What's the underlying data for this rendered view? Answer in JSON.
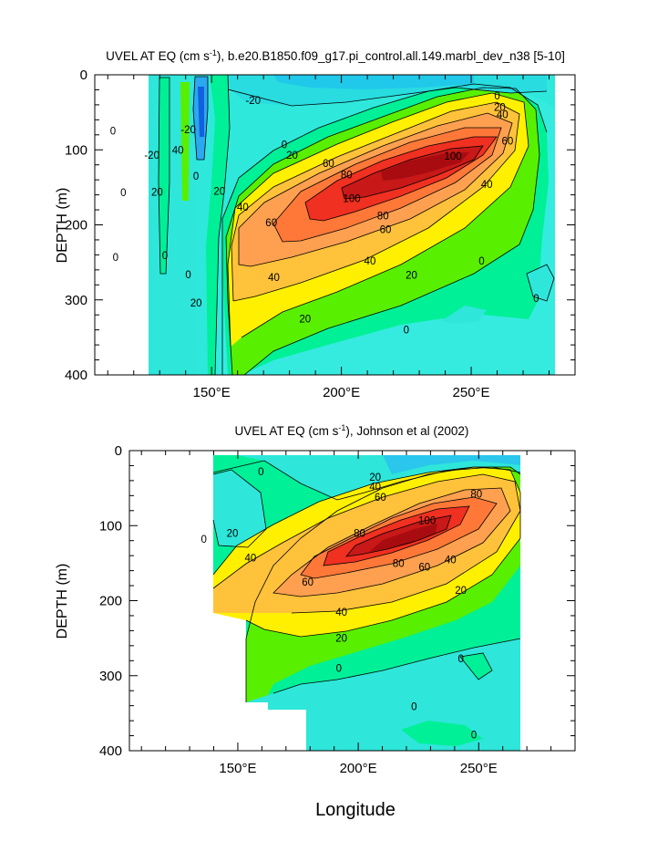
{
  "chart_data": [
    {
      "type": "contour",
      "title_prefix": "UVEL AT EQ (cm s",
      "title_suffix": "), b.e20.B1850.f09_g17.pi_control.all.149.marbl_dev_n38 [5-10]",
      "title_sup": "-1",
      "ylabel": "DEPTH (m)",
      "xlabel": "",
      "xlim": [
        105,
        290
      ],
      "ylim": [
        400,
        0
      ],
      "xticks": [
        {
          "v": 150,
          "label": "150°E"
        },
        {
          "v": 200,
          "label": "200°E"
        },
        {
          "v": 250,
          "label": "250°E"
        }
      ],
      "yticks": [
        {
          "v": 0,
          "label": "0"
        },
        {
          "v": 100,
          "label": "100"
        },
        {
          "v": 200,
          "label": "200"
        },
        {
          "v": 300,
          "label": "300"
        },
        {
          "v": 400,
          "label": "400"
        }
      ],
      "contour_levels_cm_s": [
        -40,
        -20,
        0,
        20,
        40,
        60,
        80,
        100
      ],
      "contour_labels": [
        {
          "x": 204,
          "y": 165,
          "t": "100"
        },
        {
          "x": 243,
          "y": 108,
          "t": "100"
        },
        {
          "x": 202,
          "y": 133,
          "t": "80"
        },
        {
          "x": 216,
          "y": 188,
          "t": "80"
        },
        {
          "x": 195,
          "y": 118,
          "t": "60"
        },
        {
          "x": 217,
          "y": 206,
          "t": "60"
        },
        {
          "x": 264,
          "y": 88,
          "t": "60"
        },
        {
          "x": 173,
          "y": 197,
          "t": "60"
        },
        {
          "x": 181,
          "y": 107,
          "t": "20"
        },
        {
          "x": 261,
          "y": 43,
          "t": "20"
        },
        {
          "x": 262,
          "y": 53,
          "t": "40"
        },
        {
          "x": 256,
          "y": 146,
          "t": "40"
        },
        {
          "x": 162,
          "y": 176,
          "t": "40"
        },
        {
          "x": 211,
          "y": 248,
          "t": "40"
        },
        {
          "x": 174,
          "y": 270,
          "t": "40"
        },
        {
          "x": 227,
          "y": 267,
          "t": "20"
        },
        {
          "x": 186,
          "y": 325,
          "t": "20"
        },
        {
          "x": 153,
          "y": 155,
          "t": "20"
        },
        {
          "x": 178,
          "y": 93,
          "t": "0"
        },
        {
          "x": 260,
          "y": 28,
          "t": "0"
        },
        {
          "x": 225,
          "y": 340,
          "t": "0"
        },
        {
          "x": 166,
          "y": 34,
          "t": "-20"
        },
        {
          "x": 141,
          "y": 73,
          "t": "-20"
        },
        {
          "x": 127,
          "y": 107,
          "t": "-20"
        },
        {
          "x": 137,
          "y": 100,
          "t": "40"
        },
        {
          "x": 112,
          "y": 75,
          "t": "0"
        },
        {
          "x": 116,
          "y": 157,
          "t": "0"
        },
        {
          "x": 132,
          "y": 241,
          "t": "0"
        },
        {
          "x": 113,
          "y": 243,
          "t": "0"
        },
        {
          "x": 129,
          "y": 156,
          "t": "20"
        },
        {
          "x": 141,
          "y": 266,
          "t": "0"
        },
        {
          "x": 144,
          "y": 304,
          "t": "20"
        },
        {
          "x": 275,
          "y": 298,
          "t": "0"
        },
        {
          "x": 254,
          "y": 248,
          "t": "0"
        },
        {
          "x": 144,
          "y": 135,
          "t": "0"
        }
      ]
    },
    {
      "type": "contour",
      "title_prefix": "UVEL AT EQ (cm s",
      "title_suffix": "), Johnson et al (2002)",
      "title_sup": "-1",
      "ylabel": "DEPTH (m)",
      "xlabel": "Longitude",
      "xlim": [
        105,
        290
      ],
      "ylim": [
        400,
        0
      ],
      "xticks": [
        {
          "v": 150,
          "label": "150°E"
        },
        {
          "v": 200,
          "label": "200°E"
        },
        {
          "v": 250,
          "label": "250°E"
        }
      ],
      "yticks": [
        {
          "v": 0,
          "label": "0"
        },
        {
          "v": 100,
          "label": "100"
        },
        {
          "v": 200,
          "label": "200"
        },
        {
          "v": 300,
          "label": "300"
        },
        {
          "v": 400,
          "label": "400"
        }
      ],
      "contour_levels_cm_s": [
        -20,
        0,
        20,
        40,
        60,
        80,
        100
      ],
      "contour_labels": [
        {
          "x": 233,
          "y": 93,
          "t": "100"
        },
        {
          "x": 207,
          "y": 110,
          "t": "80"
        },
        {
          "x": 252,
          "y": 58,
          "t": "80"
        },
        {
          "x": 222,
          "y": 150,
          "t": "80"
        },
        {
          "x": 232,
          "y": 155,
          "t": "60"
        },
        {
          "x": 215,
          "y": 62,
          "t": "60"
        },
        {
          "x": 187,
          "y": 175,
          "t": "60"
        },
        {
          "x": 213,
          "y": 48,
          "t": "40"
        },
        {
          "x": 165,
          "y": 143,
          "t": "40"
        },
        {
          "x": 242,
          "y": 145,
          "t": "40"
        },
        {
          "x": 200,
          "y": 215,
          "t": "40"
        },
        {
          "x": 213,
          "y": 35,
          "t": "20"
        },
        {
          "x": 158,
          "y": 110,
          "t": "20"
        },
        {
          "x": 246,
          "y": 186,
          "t": "20"
        },
        {
          "x": 200,
          "y": 250,
          "t": "20"
        },
        {
          "x": 169,
          "y": 28,
          "t": "0"
        },
        {
          "x": 147,
          "y": 118,
          "t": "0"
        },
        {
          "x": 199,
          "y": 290,
          "t": "0"
        },
        {
          "x": 246,
          "y": 277,
          "t": "0"
        },
        {
          "x": 228,
          "y": 341,
          "t": "0"
        },
        {
          "x": 251,
          "y": 379,
          "t": "0"
        }
      ]
    }
  ]
}
